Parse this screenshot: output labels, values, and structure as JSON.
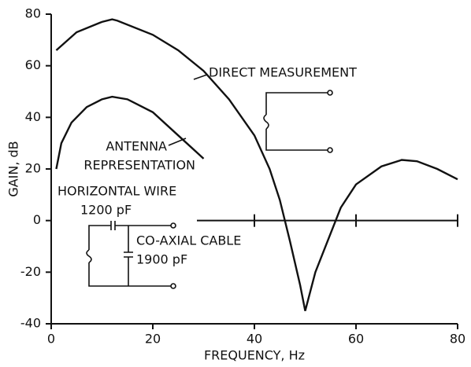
{
  "chart_data": {
    "type": "line",
    "xlabel": "FREQUENCY, Hz",
    "ylabel": "GAIN, dB",
    "xlim": [
      0,
      80
    ],
    "ylim": [
      -40,
      80
    ],
    "xticks": [
      0,
      20,
      40,
      60,
      80
    ],
    "yticks": [
      -40,
      -20,
      0,
      20,
      40,
      60,
      80
    ],
    "series": [
      {
        "color": "#111111",
        "x": [
          1,
          5,
          10,
          12,
          13,
          20,
          25,
          30,
          35,
          40,
          43,
          45,
          47,
          49,
          50,
          52,
          55,
          57,
          60,
          65,
          69,
          72,
          76,
          80
        ],
        "values": [
          66,
          73,
          77,
          78,
          77.5,
          72,
          66,
          58,
          47,
          33,
          20,
          8,
          -8,
          -25,
          -35,
          -20,
          -5,
          5,
          14,
          21,
          23.5,
          23,
          20,
          16
        ]
      },
      {
        "color": "#111111",
        "x": [
          1,
          2,
          4,
          7,
          10,
          12,
          15,
          20,
          25,
          30
        ],
        "values": [
          20,
          30,
          38,
          44,
          47,
          48,
          47,
          42,
          33,
          24
        ]
      }
    ],
    "annotations": [
      "DIRECT MEASUREMENT",
      "ANTENNA",
      "REPRESENTATION",
      "HORIZONTAL WIRE",
      "1200 pF",
      "CO-AXIAL CABLE",
      "1900 pF"
    ]
  }
}
